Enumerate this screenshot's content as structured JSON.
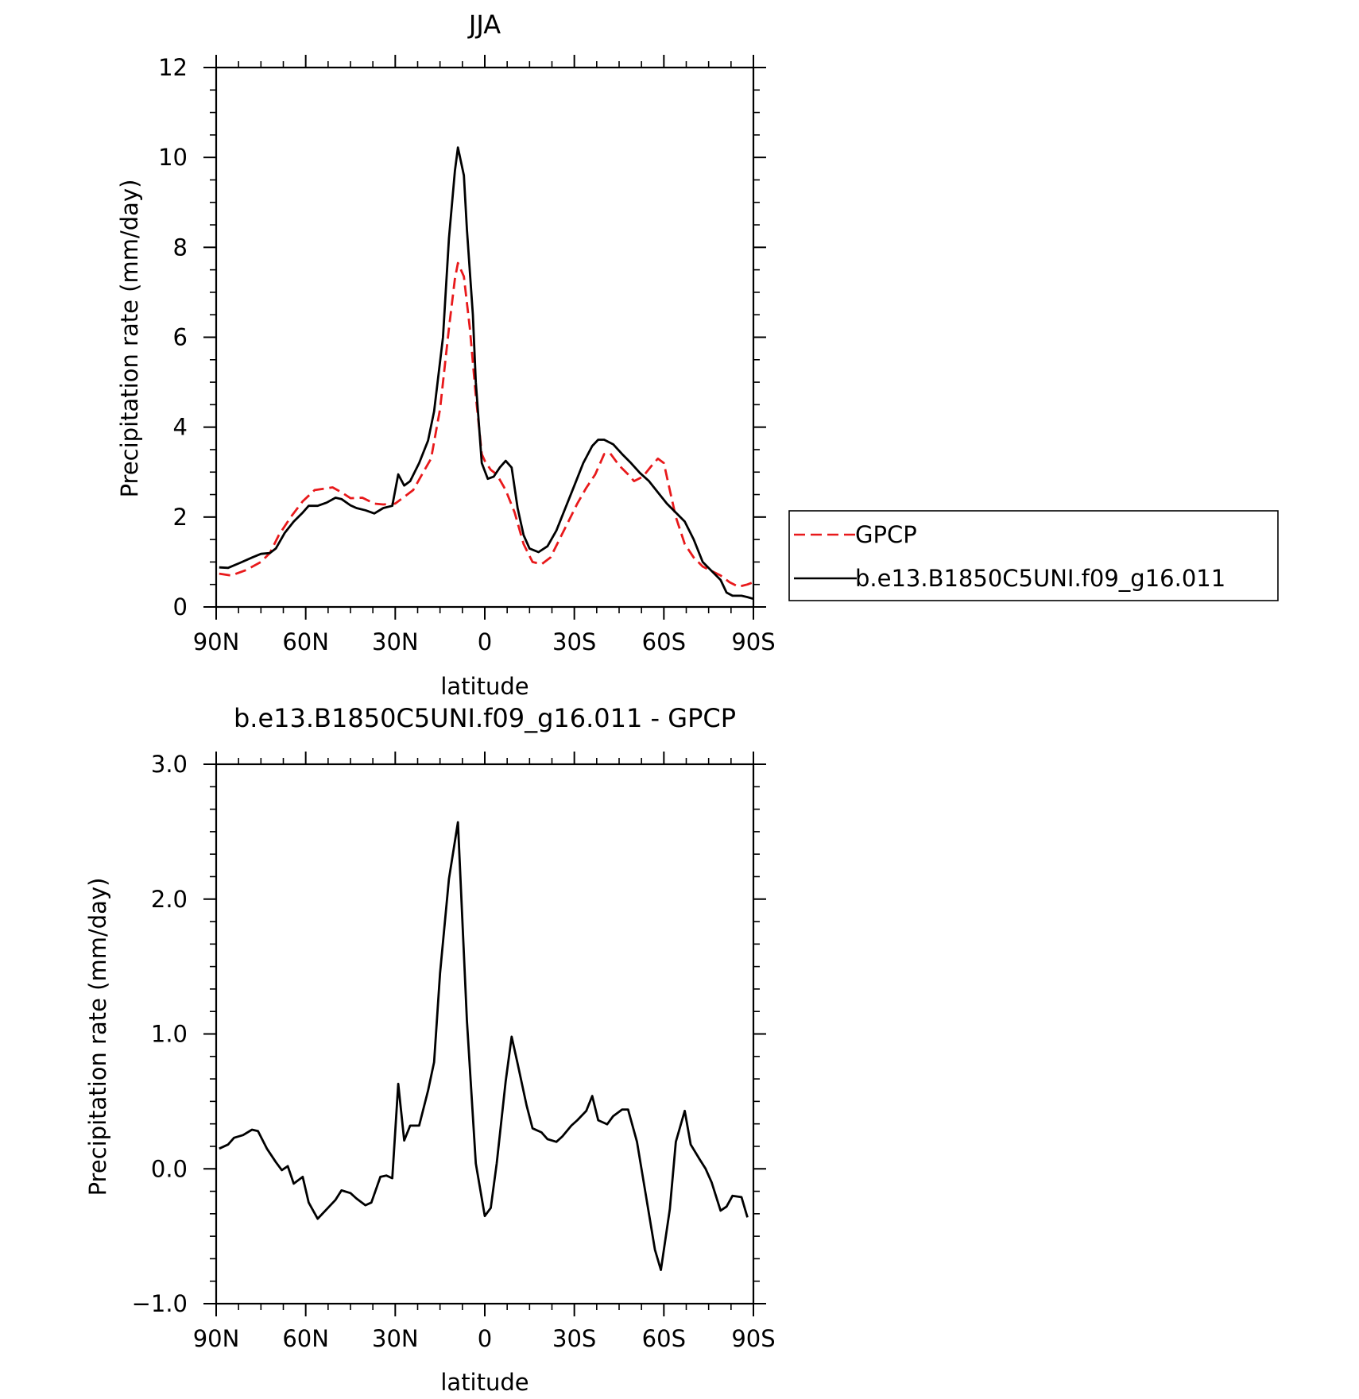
{
  "figure": {
    "colors": {
      "obs": "#e8191b",
      "model": "#000000",
      "axis": "#000000",
      "background": "#ffffff"
    }
  },
  "chart_data": [
    {
      "type": "line",
      "title": "JJA",
      "xlabel": "latitude",
      "ylabel": "Precipitation rate (mm/day)",
      "xlim": [
        90,
        -90
      ],
      "ylim": [
        0,
        12
      ],
      "x_ticks": [
        {
          "value": 90,
          "label": "90N"
        },
        {
          "value": 60,
          "label": "60N"
        },
        {
          "value": 30,
          "label": "30N"
        },
        {
          "value": 0,
          "label": "0"
        },
        {
          "value": -30,
          "label": "30S"
        },
        {
          "value": -60,
          "label": "60S"
        },
        {
          "value": -90,
          "label": "90S"
        }
      ],
      "y_ticks": [
        {
          "value": 0,
          "label": "0"
        },
        {
          "value": 2,
          "label": "2"
        },
        {
          "value": 4,
          "label": "4"
        },
        {
          "value": 6,
          "label": "6"
        },
        {
          "value": 8,
          "label": "8"
        },
        {
          "value": 10,
          "label": "10"
        },
        {
          "value": 12,
          "label": "12"
        }
      ],
      "grid": false,
      "legend": "outside-right",
      "series": [
        {
          "name": "GPCP",
          "color": "#e8191b",
          "dash": "dashed",
          "points": [
            [
              89,
              0.74
            ],
            [
              85,
              0.7
            ],
            [
              80,
              0.82
            ],
            [
              75,
              1.0
            ],
            [
              72,
              1.2
            ],
            [
              69,
              1.6
            ],
            [
              65,
              2.0
            ],
            [
              61,
              2.35
            ],
            [
              57,
              2.6
            ],
            [
              54,
              2.63
            ],
            [
              51,
              2.66
            ],
            [
              48,
              2.55
            ],
            [
              45,
              2.42
            ],
            [
              41,
              2.43
            ],
            [
              37,
              2.3
            ],
            [
              34,
              2.28
            ],
            [
              30,
              2.3
            ],
            [
              27,
              2.45
            ],
            [
              24,
              2.6
            ],
            [
              21,
              2.95
            ],
            [
              18,
              3.3
            ],
            [
              15,
              4.4
            ],
            [
              12,
              6.2
            ],
            [
              10,
              7.3
            ],
            [
              9,
              7.65
            ],
            [
              7,
              7.35
            ],
            [
              5,
              6.2
            ],
            [
              3,
              4.7
            ],
            [
              1,
              3.4
            ],
            [
              0,
              3.25
            ],
            [
              -2,
              3.05
            ],
            [
              -4,
              2.95
            ],
            [
              -7,
              2.6
            ],
            [
              -10,
              2.1
            ],
            [
              -13,
              1.4
            ],
            [
              -16,
              1.0
            ],
            [
              -19,
              0.95
            ],
            [
              -22,
              1.1
            ],
            [
              -25,
              1.5
            ],
            [
              -28,
              1.9
            ],
            [
              -31,
              2.3
            ],
            [
              -34,
              2.65
            ],
            [
              -37,
              2.95
            ],
            [
              -40,
              3.4
            ],
            [
              -42,
              3.42
            ],
            [
              -45,
              3.15
            ],
            [
              -48,
              2.95
            ],
            [
              -50,
              2.8
            ],
            [
              -53,
              2.9
            ],
            [
              -56,
              3.15
            ],
            [
              -58,
              3.3
            ],
            [
              -60,
              3.2
            ],
            [
              -62,
              2.6
            ],
            [
              -64,
              2.0
            ],
            [
              -67,
              1.4
            ],
            [
              -70,
              1.1
            ],
            [
              -73,
              0.9
            ],
            [
              -76,
              0.8
            ],
            [
              -79,
              0.7
            ],
            [
              -82,
              0.55
            ],
            [
              -85,
              0.45
            ],
            [
              -88,
              0.5
            ],
            [
              -90,
              0.55
            ]
          ]
        },
        {
          "name": "b.e13.B1850C5UNI.f09_g16.011",
          "color": "#000000",
          "dash": "solid",
          "points": [
            [
              89,
              0.88
            ],
            [
              86,
              0.87
            ],
            [
              82,
              0.98
            ],
            [
              78,
              1.1
            ],
            [
              75,
              1.18
            ],
            [
              72,
              1.2
            ],
            [
              70,
              1.3
            ],
            [
              67,
              1.65
            ],
            [
              64,
              1.9
            ],
            [
              61,
              2.1
            ],
            [
              59,
              2.25
            ],
            [
              56,
              2.25
            ],
            [
              53,
              2.32
            ],
            [
              50,
              2.43
            ],
            [
              48,
              2.4
            ],
            [
              45,
              2.26
            ],
            [
              43,
              2.2
            ],
            [
              40,
              2.15
            ],
            [
              37,
              2.08
            ],
            [
              34,
              2.2
            ],
            [
              31,
              2.25
            ],
            [
              29,
              2.95
            ],
            [
              27,
              2.7
            ],
            [
              25,
              2.8
            ],
            [
              22,
              3.2
            ],
            [
              19,
              3.7
            ],
            [
              17,
              4.35
            ],
            [
              14,
              6.0
            ],
            [
              12,
              8.2
            ],
            [
              10,
              9.7
            ],
            [
              9,
              10.22
            ],
            [
              7,
              9.6
            ],
            [
              6,
              8.4
            ],
            [
              4,
              6.5
            ],
            [
              3,
              5.0
            ],
            [
              1,
              3.2
            ],
            [
              -1,
              2.85
            ],
            [
              -3,
              2.9
            ],
            [
              -5,
              3.1
            ],
            [
              -7,
              3.25
            ],
            [
              -9,
              3.1
            ],
            [
              -11,
              2.2
            ],
            [
              -13,
              1.6
            ],
            [
              -15,
              1.3
            ],
            [
              -18,
              1.22
            ],
            [
              -21,
              1.35
            ],
            [
              -24,
              1.7
            ],
            [
              -27,
              2.2
            ],
            [
              -30,
              2.7
            ],
            [
              -33,
              3.2
            ],
            [
              -36,
              3.58
            ],
            [
              -38,
              3.72
            ],
            [
              -40,
              3.72
            ],
            [
              -43,
              3.62
            ],
            [
              -46,
              3.4
            ],
            [
              -49,
              3.2
            ],
            [
              -52,
              2.98
            ],
            [
              -55,
              2.8
            ],
            [
              -58,
              2.55
            ],
            [
              -61,
              2.3
            ],
            [
              -64,
              2.1
            ],
            [
              -67,
              1.9
            ],
            [
              -70,
              1.5
            ],
            [
              -73,
              1.0
            ],
            [
              -76,
              0.8
            ],
            [
              -79,
              0.6
            ],
            [
              -81,
              0.32
            ],
            [
              -83,
              0.25
            ],
            [
              -86,
              0.25
            ],
            [
              -88,
              0.22
            ],
            [
              -90,
              0.18
            ]
          ]
        }
      ]
    },
    {
      "type": "line",
      "title": "b.e13.B1850C5UNI.f09_g16.011 - GPCP",
      "xlabel": "latitude",
      "ylabel": "Precipitation rate (mm/day)",
      "xlim": [
        90,
        -90
      ],
      "ylim": [
        -1.0,
        3.0
      ],
      "x_ticks": [
        {
          "value": 90,
          "label": "90N"
        },
        {
          "value": 60,
          "label": "60N"
        },
        {
          "value": 30,
          "label": "30N"
        },
        {
          "value": 0,
          "label": "0"
        },
        {
          "value": -30,
          "label": "30S"
        },
        {
          "value": -60,
          "label": "60S"
        },
        {
          "value": -90,
          "label": "90S"
        }
      ],
      "y_ticks": [
        {
          "value": -1.0,
          "label": "−1.0"
        },
        {
          "value": 0.0,
          "label": "0.0"
        },
        {
          "value": 1.0,
          "label": "1.0"
        },
        {
          "value": 2.0,
          "label": "2.0"
        },
        {
          "value": 3.0,
          "label": "3.0"
        }
      ],
      "grid": false,
      "series": [
        {
          "color": "#000000",
          "dash": "solid",
          "points": [
            [
              89,
              0.15
            ],
            [
              86,
              0.18
            ],
            [
              84,
              0.23
            ],
            [
              81,
              0.25
            ],
            [
              78,
              0.29
            ],
            [
              76,
              0.28
            ],
            [
              73,
              0.15
            ],
            [
              70,
              0.05
            ],
            [
              68,
              -0.01
            ],
            [
              66,
              0.02
            ],
            [
              64,
              -0.11
            ],
            [
              61,
              -0.06
            ],
            [
              59,
              -0.25
            ],
            [
              56,
              -0.37
            ],
            [
              53,
              -0.3
            ],
            [
              50,
              -0.23
            ],
            [
              48,
              -0.16
            ],
            [
              45,
              -0.18
            ],
            [
              43,
              -0.22
            ],
            [
              40,
              -0.27
            ],
            [
              38,
              -0.25
            ],
            [
              35,
              -0.06
            ],
            [
              33,
              -0.05
            ],
            [
              31,
              -0.07
            ],
            [
              29,
              0.63
            ],
            [
              27,
              0.21
            ],
            [
              25,
              0.32
            ],
            [
              22,
              0.32
            ],
            [
              19,
              0.58
            ],
            [
              17,
              0.79
            ],
            [
              15,
              1.45
            ],
            [
              12,
              2.15
            ],
            [
              9,
              2.57
            ],
            [
              6,
              1.1
            ],
            [
              3,
              0.04
            ],
            [
              0,
              -0.35
            ],
            [
              -2,
              -0.29
            ],
            [
              -4,
              0.04
            ],
            [
              -7,
              0.65
            ],
            [
              -9,
              0.98
            ],
            [
              -11,
              0.78
            ],
            [
              -14,
              0.47
            ],
            [
              -16,
              0.3
            ],
            [
              -19,
              0.27
            ],
            [
              -21,
              0.22
            ],
            [
              -24,
              0.2
            ],
            [
              -26,
              0.24
            ],
            [
              -29,
              0.32
            ],
            [
              -31,
              0.36
            ],
            [
              -34,
              0.43
            ],
            [
              -36,
              0.54
            ],
            [
              -38,
              0.36
            ],
            [
              -41,
              0.33
            ],
            [
              -43,
              0.39
            ],
            [
              -46,
              0.44
            ],
            [
              -48,
              0.44
            ],
            [
              -51,
              0.2
            ],
            [
              -54,
              -0.2
            ],
            [
              -57,
              -0.6
            ],
            [
              -59,
              -0.75
            ],
            [
              -62,
              -0.3
            ],
            [
              -64,
              0.2
            ],
            [
              -67,
              0.43
            ],
            [
              -69,
              0.18
            ],
            [
              -72,
              0.07
            ],
            [
              -74,
              0.0
            ],
            [
              -76,
              -0.1
            ],
            [
              -79,
              -0.31
            ],
            [
              -81,
              -0.28
            ],
            [
              -83,
              -0.2
            ],
            [
              -86,
              -0.21
            ],
            [
              -88,
              -0.36
            ]
          ]
        }
      ]
    }
  ]
}
